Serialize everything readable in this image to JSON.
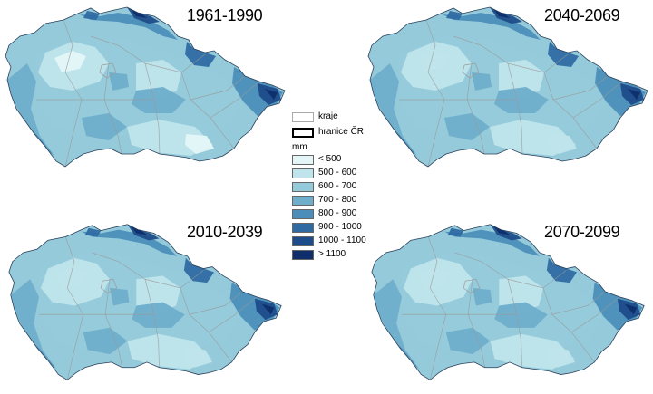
{
  "maps": [
    {
      "period": "1961-1990"
    },
    {
      "period": "2040-2069"
    },
    {
      "period": "2010-2039"
    },
    {
      "period": "2070-2099"
    }
  ],
  "legend": {
    "boundaries": [
      {
        "label": "kraje",
        "color": "#aaaaaa"
      },
      {
        "label": "hranice ČR",
        "color": "#000000"
      }
    ],
    "unit": "mm",
    "classes": [
      {
        "label": "< 500",
        "color": "#e4f5f8"
      },
      {
        "label": "500 - 600",
        "color": "#bfe4ec"
      },
      {
        "label": "600 - 700",
        "color": "#95cada"
      },
      {
        "label": "700 - 800",
        "color": "#6eaecb"
      },
      {
        "label": "800 - 900",
        "color": "#4b8eb9"
      },
      {
        "label": "900 - 1000",
        "color": "#2f6aa3"
      },
      {
        "label": "1000 - 1100",
        "color": "#1d4c8a"
      },
      {
        "label": "> 1100",
        "color": "#0e2f6b"
      }
    ]
  }
}
